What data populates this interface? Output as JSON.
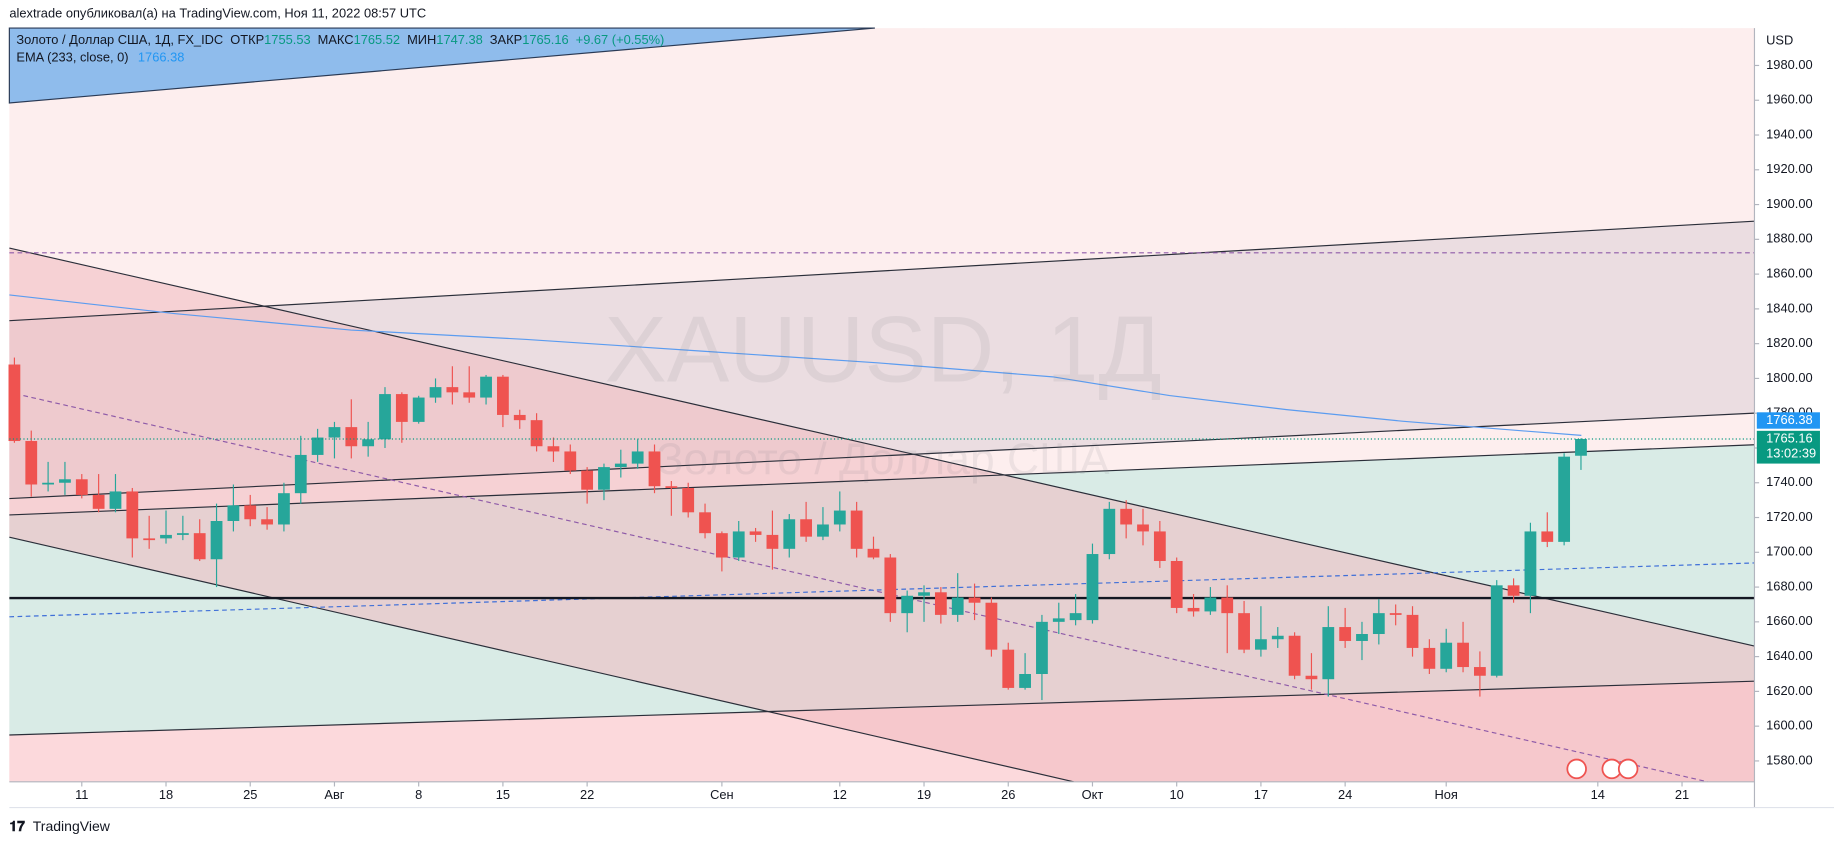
{
  "header": {
    "text": "alextrade опубликовал(а) на TradingView.com, Ноя 11, 2022 08:57 UTC"
  },
  "legend": {
    "symbol": "Золото / Доллар США, 1Д, FX_IDC",
    "open_label": "ОТКР",
    "open": "1755.53",
    "high_label": "МАКС",
    "high": "1765.52",
    "low_label": "МИН",
    "low": "1747.38",
    "close_label": "ЗАКР",
    "close": "1765.16",
    "change": "+9.67 (+0.55%)",
    "ema_label": "EMA (233, close, 0)",
    "ema": "1766.38"
  },
  "footer": {
    "brand": "TradingView"
  },
  "chart_data": {
    "type": "candlestick",
    "title": "XAUUSD, 1Д",
    "subtitle": "Золото / Доллар США",
    "currency": "USD",
    "up_color": "#26a69a",
    "down_color": "#ef5350",
    "grid": true,
    "open": [
      1808,
      1764,
      1739,
      1740,
      1742,
      1733,
      1725,
      1735,
      1708,
      1708,
      1710,
      1711,
      1696,
      1718,
      1727,
      1719,
      1716,
      1734,
      1756,
      1766,
      1772,
      1761,
      1765,
      1791,
      1775,
      1789,
      1795,
      1792,
      1789,
      1801,
      1779,
      1776,
      1761,
      1758,
      1747,
      1736,
      1749,
      1751,
      1758,
      1738,
      1737,
      1723,
      1711,
      1697,
      1712,
      1710,
      1702,
      1719,
      1709,
      1716,
      1724,
      1702,
      1697,
      1665,
      1675,
      1677,
      1664,
      1674,
      1671,
      1644,
      1622,
      1630,
      1660,
      1661,
      1661,
      1699,
      1725,
      1716,
      1712,
      1695,
      1668,
      1666,
      1674,
      1665,
      1644,
      1650,
      1652,
      1629,
      1627,
      1657,
      1649,
      1653,
      1665,
      1664,
      1645,
      1633,
      1648,
      1634,
      1629,
      1681,
      1675,
      1712,
      1706,
      1755.53
    ],
    "high": [
      1812,
      1770,
      1752,
      1752,
      1745,
      1745,
      1745,
      1737,
      1721,
      1724,
      1721,
      1719,
      1728,
      1739,
      1733,
      1726,
      1740,
      1767,
      1771,
      1775,
      1788,
      1775,
      1795,
      1792,
      1790,
      1800,
      1807,
      1807,
      1802,
      1802,
      1782,
      1780,
      1766,
      1762,
      1749,
      1751,
      1759,
      1765,
      1762,
      1741,
      1740,
      1728,
      1712,
      1718,
      1714,
      1724,
      1722,
      1729,
      1726,
      1735,
      1729,
      1709,
      1699,
      1678,
      1681,
      1680,
      1688,
      1682,
      1674,
      1648,
      1642,
      1664,
      1671,
      1676,
      1705,
      1729,
      1730,
      1725,
      1718,
      1697,
      1676,
      1680,
      1681,
      1672,
      1669,
      1657,
      1654,
      1642,
      1669,
      1668,
      1660,
      1673,
      1670,
      1669,
      1650,
      1656,
      1660,
      1643,
      1684,
      1685,
      1717,
      1723,
      1757,
      1765.52
    ],
    "low": [
      1763,
      1732,
      1735,
      1733,
      1731,
      1723,
      1723,
      1697,
      1702,
      1705,
      1707,
      1695,
      1680,
      1712,
      1715,
      1713,
      1712,
      1728,
      1752,
      1754,
      1754,
      1755,
      1760,
      1763,
      1774,
      1786,
      1785,
      1786,
      1785,
      1772,
      1771,
      1758,
      1752,
      1745,
      1728,
      1730,
      1743,
      1748,
      1734,
      1721,
      1720,
      1708,
      1689,
      1695,
      1706,
      1690,
      1697,
      1706,
      1707,
      1712,
      1697,
      1696,
      1660,
      1654,
      1660,
      1659,
      1660,
      1661,
      1640,
      1621,
      1621,
      1615,
      1653,
      1658,
      1659,
      1696,
      1708,
      1704,
      1691,
      1665,
      1663,
      1664,
      1642,
      1642,
      1640,
      1645,
      1627,
      1621,
      1617,
      1645,
      1638,
      1647,
      1658,
      1640,
      1630,
      1631,
      1631,
      1617,
      1628,
      1671,
      1665,
      1703,
      1704,
      1747.38
    ],
    "close": [
      1764,
      1739,
      1740,
      1742,
      1733,
      1725,
      1735,
      1708,
      1707,
      1710,
      1711,
      1696,
      1718,
      1727,
      1719,
      1716,
      1734,
      1756,
      1766,
      1772,
      1761,
      1765,
      1791,
      1775,
      1789,
      1795,
      1792,
      1789,
      1801,
      1779,
      1776,
      1761,
      1758,
      1747,
      1736,
      1749,
      1751,
      1758,
      1738,
      1737,
      1723,
      1711,
      1697,
      1712,
      1710,
      1702,
      1719,
      1709,
      1716,
      1724,
      1702,
      1697,
      1665,
      1675,
      1677,
      1664,
      1674,
      1671,
      1644,
      1622,
      1630,
      1660,
      1662,
      1665,
      1699,
      1725,
      1716,
      1712,
      1695,
      1668,
      1666,
      1674,
      1665,
      1644,
      1650,
      1652,
      1629,
      1627,
      1657,
      1649,
      1653,
      1665,
      1664,
      1645,
      1633,
      1648,
      1634,
      1629,
      1681,
      1675,
      1712,
      1706,
      1755,
      1765.16
    ],
    "xlim": [
      -0.3,
      103.3
    ],
    "xticks": [
      {
        "value": 4,
        "label": "11"
      },
      {
        "value": 9,
        "label": "18"
      },
      {
        "value": 14,
        "label": "25"
      },
      {
        "value": 19,
        "label": "Авг"
      },
      {
        "value": 24,
        "label": "8"
      },
      {
        "value": 29,
        "label": "15"
      },
      {
        "value": 34,
        "label": "22"
      },
      {
        "value": 42,
        "label": "Сен"
      },
      {
        "value": 49,
        "label": "12"
      },
      {
        "value": 54,
        "label": "19"
      },
      {
        "value": 59,
        "label": "26"
      },
      {
        "value": 64,
        "label": "Окт"
      },
      {
        "value": 69,
        "label": "10"
      },
      {
        "value": 74,
        "label": "17"
      },
      {
        "value": 79,
        "label": "24"
      },
      {
        "value": 85,
        "label": "Ноя"
      },
      {
        "value": 94,
        "label": "14"
      },
      {
        "value": 99,
        "label": "21"
      }
    ],
    "ylim": [
      1568,
      2001.5
    ],
    "yticks": [
      {
        "value": 1580,
        "label": "1580.00"
      },
      {
        "value": 1600,
        "label": "1600.00"
      },
      {
        "value": 1620,
        "label": "1620.00"
      },
      {
        "value": 1640,
        "label": "1640.00"
      },
      {
        "value": 1660,
        "label": "1660.00"
      },
      {
        "value": 1680,
        "label": "1680.00"
      },
      {
        "value": 1700,
        "label": "1700.00"
      },
      {
        "value": 1720,
        "label": "1720.00"
      },
      {
        "value": 1740,
        "label": "1740.00"
      },
      {
        "value": 1760,
        "label": "1760.00"
      },
      {
        "value": 1780,
        "label": "1780.00"
      },
      {
        "value": 1800,
        "label": "1800.00"
      },
      {
        "value": 1820,
        "label": "1820.00"
      },
      {
        "value": 1840,
        "label": "1840.00"
      },
      {
        "value": 1860,
        "label": "1860.00"
      },
      {
        "value": 1880,
        "label": "1880.00"
      },
      {
        "value": 1900,
        "label": "1900.00"
      },
      {
        "value": 1920,
        "label": "1920.00"
      },
      {
        "value": 1940,
        "label": "1940.00"
      },
      {
        "value": 1960,
        "label": "1960.00"
      },
      {
        "value": 1980,
        "label": "1980.00"
      }
    ],
    "ema_price": {
      "value": 1766.38,
      "label": "1766.38",
      "color": "#2196f3"
    },
    "last_price": {
      "value": 1765.16,
      "label": "1765.16",
      "countdown": "13:02:39",
      "color": "#089981"
    }
  }
}
